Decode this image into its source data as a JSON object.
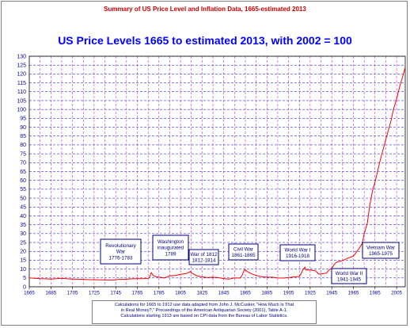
{
  "header": {
    "top_title": "Summary of US Price Level and Inflation Data, 1665-estimated 2013"
  },
  "chart_data": {
    "type": "line",
    "title": "US Price Levels 1665 to estimated 2013, with 2002 = 100",
    "xlabel": "",
    "ylabel": "",
    "xlim": [
      1665,
      2013
    ],
    "ylim": [
      0,
      130
    ],
    "x_ticks": [
      1665,
      1685,
      1705,
      1725,
      1745,
      1765,
      1785,
      1805,
      1825,
      1845,
      1865,
      1885,
      1905,
      1925,
      1945,
      1965,
      1985,
      2005
    ],
    "y_ticks": [
      0,
      5,
      10,
      15,
      20,
      25,
      30,
      35,
      40,
      45,
      50,
      55,
      60,
      65,
      70,
      75,
      80,
      85,
      90,
      95,
      100,
      105,
      110,
      115,
      120,
      125,
      130
    ],
    "grid": true,
    "series": [
      {
        "color": "#ff0000",
        "x": [
          1665,
          1670,
          1675,
          1680,
          1685,
          1690,
          1695,
          1700,
          1705,
          1710,
          1715,
          1720,
          1725,
          1730,
          1735,
          1740,
          1745,
          1748,
          1750,
          1755,
          1760,
          1765,
          1770,
          1775,
          1776,
          1778,
          1779,
          1780,
          1783,
          1785,
          1790,
          1795,
          1800,
          1805,
          1810,
          1813,
          1814,
          1815,
          1820,
          1825,
          1830,
          1835,
          1840,
          1845,
          1850,
          1855,
          1860,
          1862,
          1864,
          1865,
          1866,
          1870,
          1875,
          1880,
          1885,
          1890,
          1895,
          1900,
          1905,
          1910,
          1915,
          1917,
          1918,
          1920,
          1921,
          1925,
          1930,
          1933,
          1940,
          1942,
          1945,
          1948,
          1950,
          1955,
          1960,
          1965,
          1970,
          1973,
          1975,
          1978,
          1980,
          1983,
          1985,
          1990,
          1995,
          2000,
          2002,
          2005,
          2008,
          2010,
          2013
        ],
        "y": [
          5.0,
          4.8,
          4.6,
          4.5,
          4.4,
          4.6,
          4.8,
          4.5,
          4.4,
          4.3,
          4.2,
          4.0,
          4.0,
          3.9,
          3.9,
          3.8,
          3.9,
          4.4,
          4.2,
          4.3,
          4.5,
          4.6,
          4.6,
          4.7,
          5.2,
          8.0,
          7.0,
          6.2,
          5.6,
          5.4,
          5.0,
          6.2,
          6.4,
          7.0,
          7.4,
          8.2,
          8.6,
          7.9,
          6.2,
          5.6,
          5.2,
          5.4,
          5.2,
          4.6,
          4.4,
          5.0,
          4.9,
          6.5,
          9.5,
          9.6,
          8.9,
          7.5,
          6.4,
          5.7,
          5.4,
          5.4,
          5.0,
          4.9,
          5.2,
          5.6,
          5.8,
          7.9,
          9.3,
          11.1,
          9.5,
          9.5,
          9.0,
          7.1,
          7.7,
          9.2,
          10.5,
          13.2,
          14.0,
          14.8,
          16.2,
          17.3,
          21.4,
          24.2,
          29.7,
          36.2,
          45.5,
          55.0,
          59.0,
          71.8,
          83.0,
          94.2,
          100.0,
          105.9,
          113.3,
          117.2,
          123.8
        ]
      }
    ],
    "annotations": [
      {
        "lines": [
          "Revolutionary",
          "War",
          "1776-1783"
        ]
      },
      {
        "lines": [
          "Washington",
          "inaugurated",
          "1789"
        ]
      },
      {
        "lines": [
          "War of 1812",
          "1812-1814"
        ]
      },
      {
        "lines": [
          "Civil War",
          "1861-1865"
        ]
      },
      {
        "lines": [
          "World War I",
          "1916-1918"
        ]
      },
      {
        "lines": [
          "World War II",
          "1941-1945"
        ]
      },
      {
        "lines": [
          "Vietnam War",
          "1965-1975"
        ]
      }
    ]
  },
  "source_note": {
    "line1": "Calculations for 1665 to 1912 use data adapted from John J. McCusker, \"How Much Is That",
    "line2": "in Real Money?,\"  Proceedings of the American Antiquarian Society (2001), Table A-1.",
    "line3": "Calculations starting 1913 are based on CPI data from the Bureau of Labor Statistics."
  }
}
